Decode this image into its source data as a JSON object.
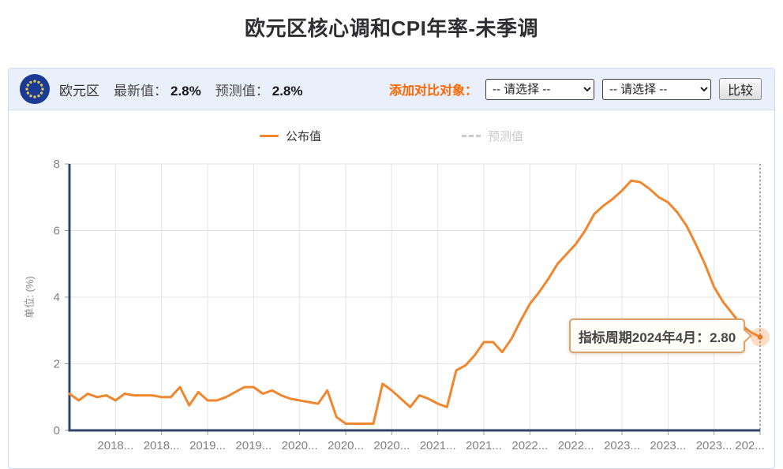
{
  "page_title": "欧元区核心调和CPI年率-未季调",
  "header": {
    "region": "欧元区",
    "latest_label": "最新值：",
    "latest_value": "2.8%",
    "forecast_label": "预测值：",
    "forecast_value": "2.8%",
    "compare_label": "添加对比对象：",
    "select1_value": "-- 请选择 --",
    "select2_value": "-- 请选择 --",
    "compare_button": "比较"
  },
  "legend": {
    "published_label": "公布值",
    "forecast_label": "预测值",
    "forecast_disabled": true
  },
  "tooltip": {
    "text": "指标周期2024年4月：2.80"
  },
  "colors": {
    "line": "#f0862d",
    "axis": "#2f4468",
    "grid": "#e3e3e3",
    "tick_text": "#808080",
    "accent_orange": "#ff6600",
    "header_bg": "#e9effb",
    "tooltip_border": "#dda169",
    "flag_blue": "#1a3a94",
    "flag_stars": "#ddc55c"
  },
  "chart_data": {
    "type": "line",
    "title": "欧元区核心调和CPI年率-未季调",
    "ylabel": "单位: (%)",
    "ylim": [
      0,
      8
    ],
    "yticks": [
      0,
      2,
      4,
      6,
      8
    ],
    "grid": true,
    "legend_position": "top-center",
    "x_range": [
      "2018-01",
      "2024-04"
    ],
    "x_tick_labels": [
      "2018...",
      "2018...",
      "2019...",
      "2019...",
      "2020...",
      "2020...",
      "2020...",
      "2021...",
      "2021...",
      "2022...",
      "2022...",
      "2023...",
      "2023...",
      "2023...",
      "202..."
    ],
    "series": [
      {
        "name": "公布值",
        "visible": true,
        "color": "#f0862d",
        "values": [
          1.1,
          0.9,
          1.1,
          1.0,
          1.05,
          0.9,
          1.1,
          1.05,
          1.05,
          1.05,
          1.0,
          1.0,
          1.3,
          0.75,
          1.15,
          0.9,
          0.9,
          1.0,
          1.15,
          1.3,
          1.3,
          1.1,
          1.2,
          1.05,
          0.95,
          0.9,
          0.85,
          0.8,
          1.2,
          0.4,
          0.2,
          0.2,
          0.2,
          0.2,
          1.4,
          1.2,
          0.95,
          0.7,
          1.05,
          0.95,
          0.8,
          0.7,
          1.8,
          1.95,
          2.25,
          2.65,
          2.65,
          2.35,
          2.75,
          3.3,
          3.8,
          4.15,
          4.55,
          5.0,
          5.3,
          5.6,
          6.0,
          6.5,
          6.75,
          6.95,
          7.2,
          7.5,
          7.45,
          7.25,
          7.0,
          6.85,
          6.55,
          6.15,
          5.6,
          5.0,
          4.3,
          3.85,
          3.5,
          3.15,
          2.95,
          2.8
        ]
      },
      {
        "name": "预测值",
        "visible": false,
        "color": "#cccccc",
        "values": []
      }
    ],
    "highlight": {
      "period": "2024年4月",
      "value": 2.8,
      "display": "2.80"
    }
  }
}
